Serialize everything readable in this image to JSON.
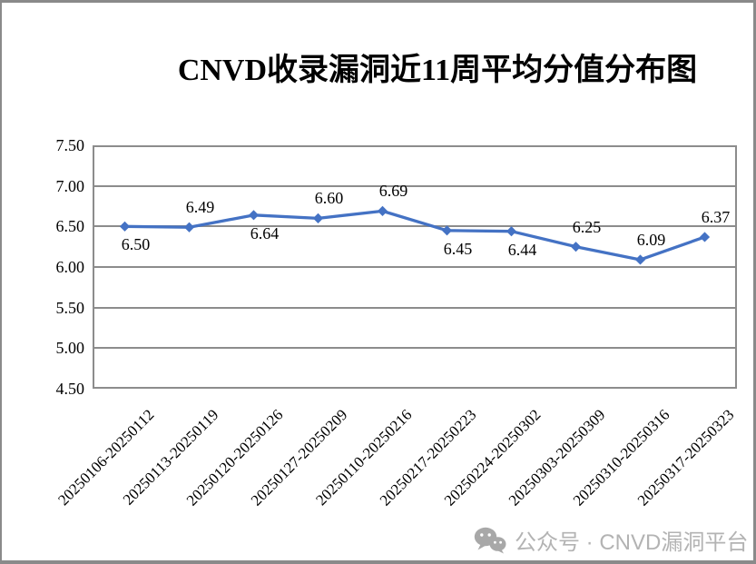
{
  "window": {
    "background": "#ffffff",
    "frame_color": "#8a8a8a"
  },
  "colors": {
    "line": "#4472C4",
    "marker": "#4472C4",
    "grid": "#8c8c8c",
    "plot_border": "#8c8c8c",
    "text": "#000000",
    "watermark_text": "#b3b3b3",
    "watermark_icon": "#a8a8a8"
  },
  "watermark": {
    "icon": "wechat-icon",
    "text": "公众号 · CNVD漏洞平台"
  },
  "chart_data": {
    "type": "line",
    "title": "CNVD收录漏洞近11周平均分值分布图",
    "categories": [
      "20250106-20250112",
      "20250113-20250119",
      "20250120-20250126",
      "20250127-20250209",
      "20250110-20250216",
      "20250217-20250223",
      "20250224-20250302",
      "20250303-20250309",
      "20250310-20250316",
      "20250317-20250323"
    ],
    "values": [
      6.5,
      6.49,
      6.64,
      6.6,
      6.69,
      6.45,
      6.44,
      6.25,
      6.09,
      6.37
    ],
    "data_labels": [
      "6.50",
      "6.49",
      "6.64",
      "6.60",
      "6.69",
      "6.45",
      "6.44",
      "6.25",
      "6.09",
      "6.37"
    ],
    "label_positions": [
      "below",
      "above",
      "below",
      "above",
      "above",
      "below",
      "below",
      "above",
      "above",
      "above"
    ],
    "xlabel": "",
    "ylabel": "",
    "ylim": [
      4.5,
      7.5
    ],
    "yticks": [
      "7.50",
      "7.00",
      "6.50",
      "6.00",
      "5.50",
      "5.00",
      "4.50"
    ],
    "ytick_values": [
      7.5,
      7.0,
      6.5,
      6.0,
      5.5,
      5.0,
      4.5
    ],
    "grid": "horizontal",
    "legend": "none",
    "marker": "diamond",
    "x_tick_rotation": 45
  }
}
